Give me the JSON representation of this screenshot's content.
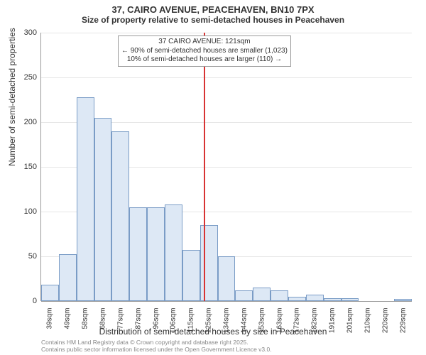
{
  "title_line1": "37, CAIRO AVENUE, PEACEHAVEN, BN10 7PX",
  "title_line2": "Size of property relative to semi-detached houses in Peacehaven",
  "xlabel": "Distribution of semi-detached houses by size in Peacehaven",
  "ylabel": "Number of semi-detached properties",
  "footnote_line1": "Contains HM Land Registry data © Crown copyright and database right 2025.",
  "footnote_line2": "Contains public sector information licensed under the Open Government Licence v3.0.",
  "chart": {
    "type": "histogram",
    "background_color": "#ffffff",
    "grid_color": "#e6e6e6",
    "bar_fill": "#dde8f5",
    "bar_border": "#7a9cc6",
    "marker_color": "#d83333",
    "title_fontsize": 13,
    "subtitle_fontsize": 12,
    "label_fontsize": 12,
    "tick_fontsize": 11,
    "xtick_fontsize": 10,
    "annotation_fontsize": 10,
    "ylim": [
      0,
      300
    ],
    "ytick_step": 50,
    "yticks": [
      0,
      50,
      100,
      150,
      200,
      250,
      300
    ],
    "xticks": [
      "39sqm",
      "49sqm",
      "58sqm",
      "68sqm",
      "77sqm",
      "87sqm",
      "96sqm",
      "106sqm",
      "115sqm",
      "125sqm",
      "134sqm",
      "144sqm",
      "153sqm",
      "163sqm",
      "172sqm",
      "182sqm",
      "191sqm",
      "201sqm",
      "210sqm",
      "220sqm",
      "229sqm"
    ],
    "values": [
      18,
      52,
      228,
      205,
      190,
      105,
      105,
      108,
      57,
      85,
      50,
      12,
      15,
      12,
      5,
      7,
      3,
      3,
      0,
      0,
      2
    ],
    "bar_width_ratio": 1.0,
    "marker_x_ratio": 0.4405,
    "annotation": {
      "line1": "37 CAIRO AVENUE: 121sqm",
      "line2": "← 90% of semi-detached houses are smaller (1,023)",
      "line3": "10% of semi-detached houses are larger (110) →"
    }
  }
}
